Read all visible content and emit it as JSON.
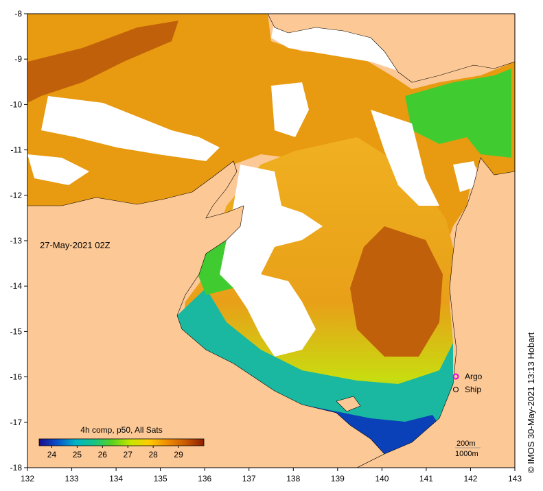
{
  "map": {
    "timestamp": "27-May-2021 02Z",
    "composite_label": "4h comp, p50, All Sats",
    "credit": "© IMOS 30-May-2021 13:13 Hobart",
    "lon_ticks": [
      "132",
      "133",
      "134",
      "135",
      "136",
      "137",
      "138",
      "139",
      "140",
      "141",
      "142",
      "143"
    ],
    "lat_ticks": [
      "-8",
      "-9",
      "-10",
      "-11",
      "-12",
      "-13",
      "-14",
      "-15",
      "-16",
      "-17",
      "-18"
    ],
    "lon_range": [
      132,
      143
    ],
    "lat_range": [
      -18,
      -8
    ],
    "colorbar": {
      "range": [
        23.5,
        30
      ],
      "tick_labels": [
        "24",
        "25",
        "26",
        "27",
        "28",
        "29"
      ],
      "colors": [
        "#1a0b8c",
        "#0a52c8",
        "#00b4c8",
        "#17c486",
        "#5ad21e",
        "#c8e600",
        "#ffcc00",
        "#f08c00",
        "#c85a00",
        "#8c1e00"
      ]
    },
    "legend": {
      "argo_label": "Argo",
      "ship_label": "Ship",
      "argo_color": "#e000e0"
    },
    "contours": {
      "c200": "200m",
      "c1000": "1000m"
    },
    "colors": {
      "land": "#fcc896",
      "no_data": "#ffffff",
      "warm_sst": "#e89a10",
      "hot_sst": "#c0600a",
      "cool_sst": "#1ab8a0",
      "cold_sst": "#0a40b8",
      "mild_sst": "#ffd21e",
      "green_sst": "#40cc30"
    }
  }
}
